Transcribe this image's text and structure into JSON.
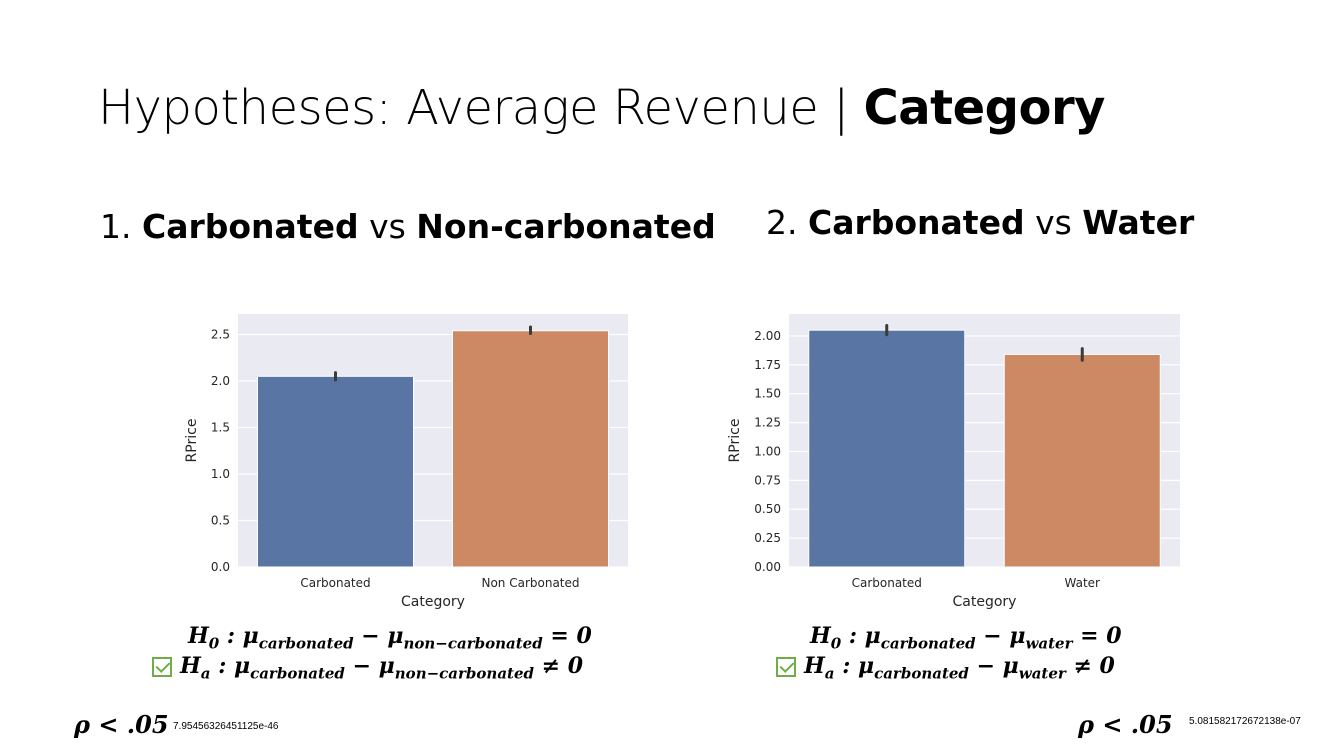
{
  "title": {
    "regular": "Hypotheses: Average Revenue | ",
    "bold": "Category"
  },
  "comparisons": [
    {
      "number": "1. ",
      "left": "Carbonated",
      "vs": " vs ",
      "right": "Non-carbonated"
    },
    {
      "number": "2. ",
      "left": "Carbonated",
      "vs": " vs ",
      "right": "Water"
    }
  ],
  "chart_data": [
    {
      "type": "bar",
      "categories": [
        "Carbonated",
        "Non Carbonated"
      ],
      "values": [
        2.05,
        2.54
      ],
      "error_bars": [
        [
          2.01,
          2.09
        ],
        [
          2.51,
          2.58
        ]
      ],
      "colors": [
        "#5875a4",
        "#cc8963"
      ],
      "xlabel": "Category",
      "ylabel": "RPrice",
      "ylim": [
        0,
        2.72
      ],
      "yticks": [
        "0.0",
        "0.5",
        "1.0",
        "1.5",
        "2.0",
        "2.5"
      ],
      "ytick_values": [
        0,
        0.5,
        1.0,
        1.5,
        2.0,
        2.5
      ],
      "grid": true
    },
    {
      "type": "bar",
      "categories": [
        "Carbonated",
        "Water"
      ],
      "values": [
        2.05,
        1.84
      ],
      "error_bars": [
        [
          2.01,
          2.09
        ],
        [
          1.79,
          1.89
        ]
      ],
      "colors": [
        "#5875a4",
        "#cc8963"
      ],
      "xlabel": "Category",
      "ylabel": "RPrice",
      "ylim": [
        0,
        2.19
      ],
      "yticks": [
        "0.00",
        "0.25",
        "0.50",
        "0.75",
        "1.00",
        "1.25",
        "1.50",
        "1.75",
        "2.00"
      ],
      "ytick_values": [
        0,
        0.25,
        0.5,
        0.75,
        1.0,
        1.25,
        1.5,
        1.75,
        2.0
      ],
      "grid": true
    }
  ],
  "hypotheses": [
    {
      "h0": {
        "label": "H",
        "sub": "0",
        "colon": " :  μ",
        "a": "carbonated",
        "minus": "  −  μ",
        "b": "non−carbonated",
        "rel": " = 0"
      },
      "ha": {
        "label": "H",
        "sub": "a",
        "colon": " :  μ",
        "a": "carbonated",
        "minus": "  −  μ",
        "b": "non−carbonated",
        "rel": "  ≠ 0"
      },
      "p": "ρ < .05",
      "p_value": "7.95456326451125e-46"
    },
    {
      "h0": {
        "label": "H",
        "sub": "0",
        "colon": " :  μ",
        "a": "carbonated",
        "minus": "  −  μ",
        "b": "water",
        "rel": " = 0"
      },
      "ha": {
        "label": "H",
        "sub": "a",
        "colon": " :  μ",
        "a": "carbonated",
        "minus": "  −  μ",
        "b": "water",
        "rel": "  ≠ 0"
      },
      "p": "ρ < .05",
      "p_value": "5.081582172672138e-07"
    }
  ],
  "colors": {
    "plot_bg": "#eaeaf2",
    "grid": "#ffffff",
    "check": "#70ad47",
    "errbar": "#3b3b3b"
  }
}
